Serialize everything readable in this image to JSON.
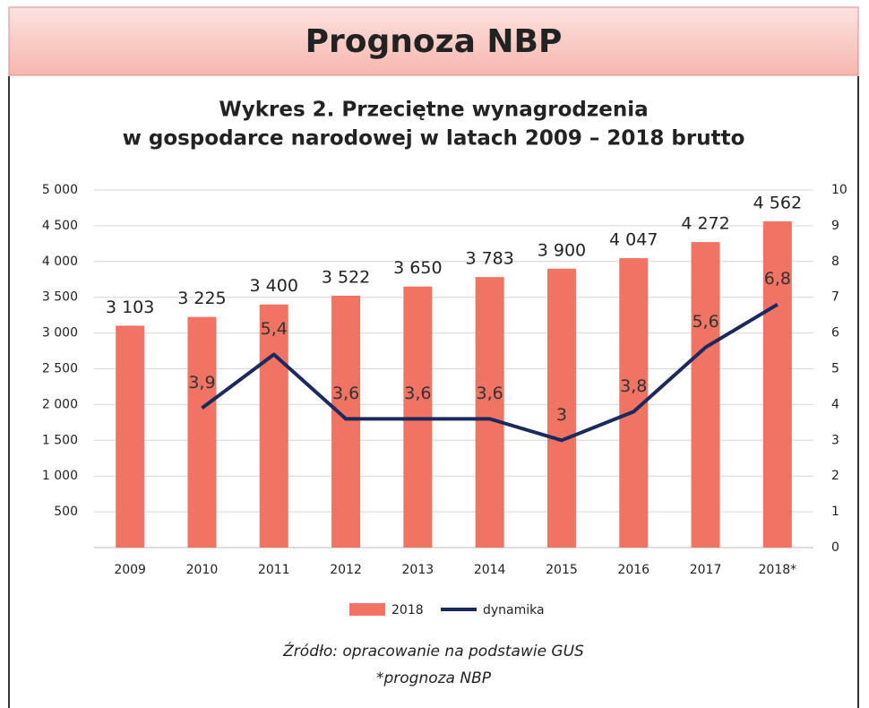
{
  "header": {
    "title": "Prognoza NBP"
  },
  "chart_data": {
    "type": "bar",
    "title": "Wykres 2. Przeciętne wynagrodzenia",
    "subtitle": "w gospodarce narodowej w latach 2009 – 2018 brutto",
    "categories": [
      "2009",
      "2010",
      "2011",
      "2012",
      "2013",
      "2014",
      "2015",
      "2016",
      "2017",
      "2018*"
    ],
    "series": [
      {
        "name": "2018",
        "type": "bar",
        "color": "#f07363",
        "values": [
          3103,
          3225,
          3400,
          3522,
          3650,
          3783,
          3900,
          4047,
          4272,
          4562
        ],
        "value_labels": [
          "3 103",
          "3 225",
          "3 400",
          "3 522",
          "3 650",
          "3 783",
          "3 900",
          "4 047",
          "4 272",
          "4 562"
        ]
      },
      {
        "name": "dynamika",
        "type": "line",
        "axis": "y2",
        "color": "#1b2a5c",
        "values": [
          null,
          3.9,
          5.4,
          3.6,
          3.6,
          3.6,
          3,
          3.8,
          5.6,
          6.8
        ],
        "value_labels": [
          null,
          "3,9",
          "5,4",
          "3,6",
          "3,6",
          "3,6",
          "3",
          "3,8",
          "5,6",
          "6,8"
        ]
      }
    ],
    "ylim": [
      0,
      5000
    ],
    "yticks": [
      500,
      {
        "value": 1000,
        "label": "1 000"
      },
      {
        "value": 1500,
        "label": "1 500"
      },
      {
        "value": 2000,
        "label": "2 000"
      },
      {
        "value": 2500,
        "label": "2 500"
      },
      {
        "value": 3000,
        "label": "3 000"
      },
      {
        "value": 3500,
        "label": "3 500"
      },
      {
        "value": 4000,
        "label": "4 000"
      },
      {
        "value": 4500,
        "label": "4 500"
      },
      {
        "value": 5000,
        "label": "5 000"
      }
    ],
    "y2lim": [
      0,
      10
    ],
    "y2ticks": [
      0,
      1,
      2,
      3,
      4,
      5,
      6,
      7,
      8,
      9,
      10
    ],
    "grid": true,
    "legend": "bottom",
    "notes": [
      "Źródło: opracowanie na podstawie GUS",
      "*prognoza NBP"
    ]
  }
}
